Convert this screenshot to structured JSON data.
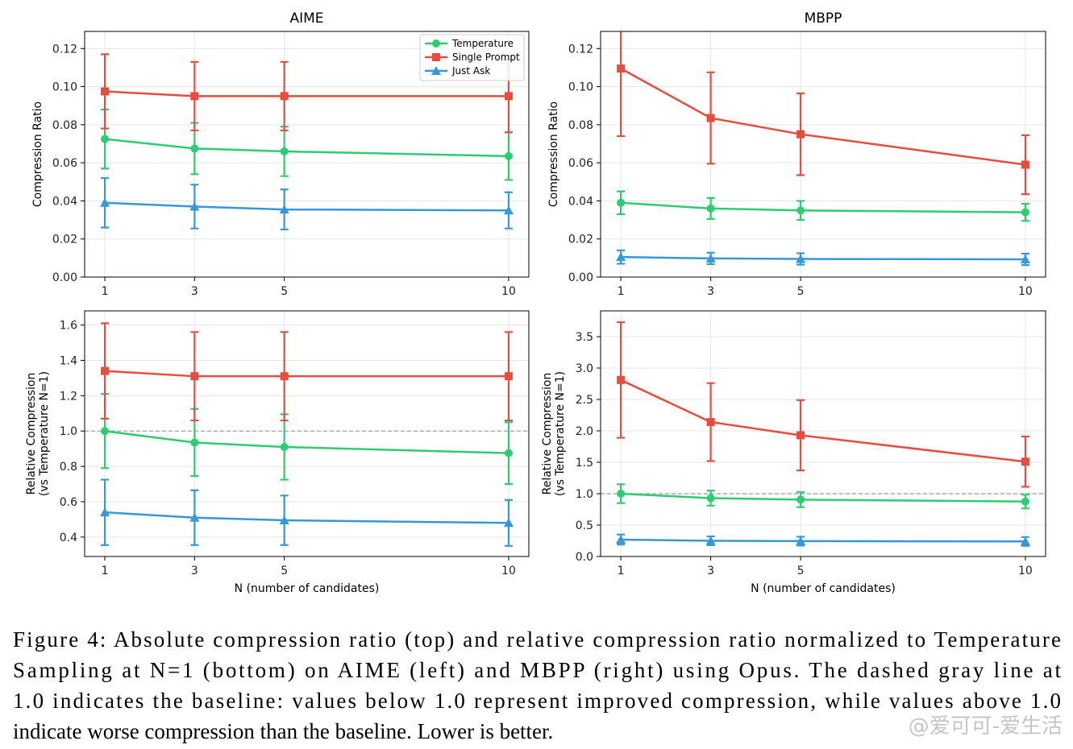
{
  "chart_data": [
    {
      "type": "line",
      "title": "AIME",
      "ylabel": [
        "Compression Ratio"
      ],
      "x": [
        1,
        3,
        5,
        10
      ],
      "xlim": [
        0.55,
        10.45
      ],
      "xticks": [
        1,
        3,
        5,
        10
      ],
      "ylim": [
        0,
        0.129
      ],
      "yticks": [
        {
          "value": 0,
          "label": "0.00"
        },
        {
          "value": 0.02,
          "label": "0.02"
        },
        {
          "value": 0.04,
          "label": "0.04"
        },
        {
          "value": 0.06,
          "label": "0.06"
        },
        {
          "value": 0.08,
          "label": "0.08"
        },
        {
          "value": 0.1,
          "label": "0.10"
        },
        {
          "value": 0.12,
          "label": "0.12"
        }
      ],
      "grid": true,
      "legend": "upper right",
      "series": [
        {
          "name": "Temperature",
          "color": "#2ecc71",
          "marker": "circle",
          "values": [
            0.0725,
            0.0675,
            0.066,
            0.0635
          ],
          "errors": [
            0.0155,
            0.0135,
            0.013,
            0.0125
          ]
        },
        {
          "name": "Single Prompt",
          "color": "#e74c3c",
          "marker": "square",
          "values": [
            0.0975,
            0.095,
            0.095,
            0.095
          ],
          "errors": [
            0.0195,
            0.018,
            0.018,
            0.019
          ]
        },
        {
          "name": "Just Ask",
          "color": "#3498db",
          "marker": "triangle",
          "values": [
            0.039,
            0.037,
            0.0355,
            0.035
          ],
          "errors": [
            0.013,
            0.0115,
            0.0105,
            0.0095
          ]
        }
      ]
    },
    {
      "type": "line",
      "title": "MBPP",
      "ylabel": [
        "Compression Ratio"
      ],
      "x": [
        1,
        3,
        5,
        10
      ],
      "xlim": [
        0.55,
        10.45
      ],
      "xticks": [
        1,
        3,
        5,
        10
      ],
      "ylim": [
        0,
        0.129
      ],
      "yticks": [
        {
          "value": 0,
          "label": "0.00"
        },
        {
          "value": 0.02,
          "label": "0.02"
        },
        {
          "value": 0.04,
          "label": "0.04"
        },
        {
          "value": 0.06,
          "label": "0.06"
        },
        {
          "value": 0.08,
          "label": "0.08"
        },
        {
          "value": 0.1,
          "label": "0.10"
        },
        {
          "value": 0.12,
          "label": "0.12"
        }
      ],
      "grid": true,
      "series": [
        {
          "name": "Temperature",
          "color": "#2ecc71",
          "marker": "circle",
          "values": [
            0.039,
            0.036,
            0.035,
            0.034
          ],
          "errors": [
            0.006,
            0.0055,
            0.005,
            0.0045
          ]
        },
        {
          "name": "Single Prompt",
          "color": "#e74c3c",
          "marker": "square",
          "values": [
            0.1095,
            0.0835,
            0.075,
            0.059
          ],
          "errors": [
            0.0355,
            0.024,
            0.0215,
            0.0155
          ]
        },
        {
          "name": "Just Ask",
          "color": "#3498db",
          "marker": "triangle",
          "values": [
            0.0105,
            0.0098,
            0.0095,
            0.0093
          ],
          "errors": [
            0.0035,
            0.003,
            0.003,
            0.003
          ]
        }
      ]
    },
    {
      "type": "line",
      "xlabel": "N (number of candidates)",
      "ylabel": [
        "Relative Compression",
        "(vs Temperature N=1)"
      ],
      "x": [
        1,
        3,
        5,
        10
      ],
      "xlim": [
        0.55,
        10.45
      ],
      "xticks": [
        1,
        3,
        5,
        10
      ],
      "ylim": [
        0.29,
        1.68
      ],
      "yticks": [
        0.4,
        0.6,
        0.8,
        {
          "value": 1,
          "label": "1.0"
        },
        1.2,
        1.4,
        1.6
      ],
      "grid": true,
      "baseline": 1,
      "series": [
        {
          "name": "Temperature",
          "color": "#2ecc71",
          "marker": "circle",
          "values": [
            1.0,
            0.935,
            0.91,
            0.875
          ],
          "errors": [
            0.21,
            0.19,
            0.185,
            0.175
          ]
        },
        {
          "name": "Single Prompt",
          "color": "#e74c3c",
          "marker": "square",
          "values": [
            1.34,
            1.31,
            1.31,
            1.31
          ],
          "errors": [
            0.27,
            0.25,
            0.25,
            0.25
          ]
        },
        {
          "name": "Just Ask",
          "color": "#3498db",
          "marker": "triangle",
          "values": [
            0.54,
            0.51,
            0.495,
            0.48
          ],
          "errors": [
            0.185,
            0.155,
            0.14,
            0.13
          ]
        }
      ]
    },
    {
      "type": "line",
      "xlabel": "N (number of candidates)",
      "ylabel": [
        "Relative Compression",
        "(vs Temperature N=1)"
      ],
      "x": [
        1,
        3,
        5,
        10
      ],
      "xlim": [
        0.55,
        10.45
      ],
      "xticks": [
        1,
        3,
        5,
        10
      ],
      "ylim": [
        0,
        3.91
      ],
      "yticks": [
        {
          "value": 0,
          "label": "0.0"
        },
        0.5,
        {
          "value": 1,
          "label": "1.0"
        },
        1.5,
        {
          "value": 2,
          "label": "2.0"
        },
        2.5,
        {
          "value": 3,
          "label": "3.0"
        },
        3.5
      ],
      "grid": true,
      "baseline": 1,
      "series": [
        {
          "name": "Temperature",
          "color": "#2ecc71",
          "marker": "circle",
          "values": [
            1.0,
            0.93,
            0.905,
            0.875
          ],
          "errors": [
            0.15,
            0.12,
            0.12,
            0.11
          ]
        },
        {
          "name": "Single Prompt",
          "color": "#e74c3c",
          "marker": "square",
          "values": [
            2.81,
            2.14,
            1.93,
            1.51
          ],
          "errors": [
            0.92,
            0.62,
            0.56,
            0.4
          ]
        },
        {
          "name": "Just Ask",
          "color": "#3498db",
          "marker": "triangle",
          "values": [
            0.27,
            0.25,
            0.245,
            0.24
          ],
          "errors": [
            0.08,
            0.07,
            0.07,
            0.07
          ]
        }
      ]
    }
  ],
  "caption": [
    "Figure 4: Absolute compression ratio (top) and relative compression ratio normalized to Temperature",
    "Sampling at N=1 (bottom) on AIME (left) and MBPP (right) using Opus. The dashed gray line at",
    "1.0 indicates the baseline: values below 1.0 represent improved compression, while values above 1.0",
    "indicate worse compression than the baseline. Lower is better."
  ],
  "watermark": "@爱可可-爱生活"
}
